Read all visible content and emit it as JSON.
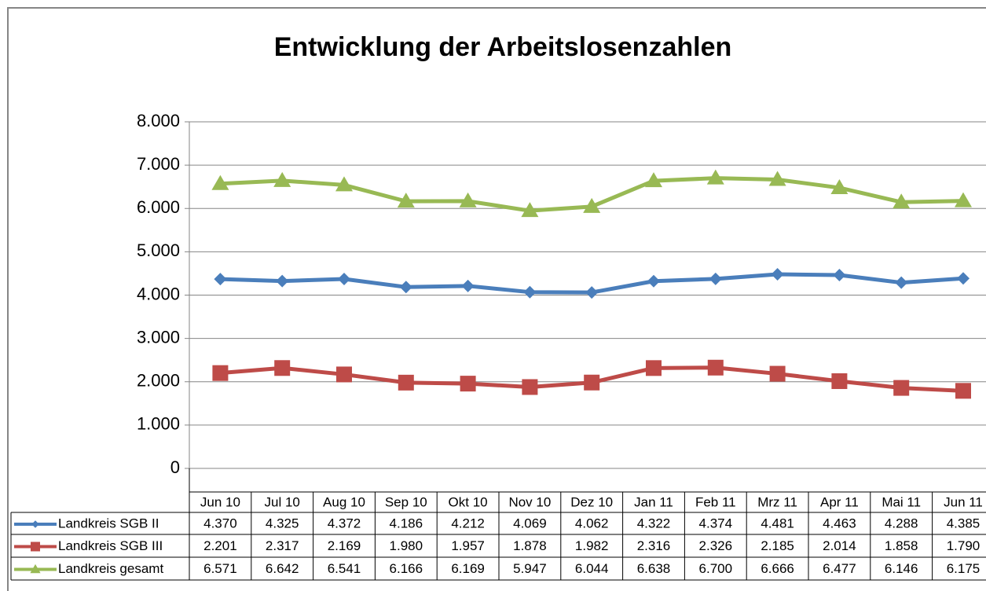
{
  "chart_data": {
    "type": "line",
    "title": "Entwicklung der Arbeitslosenzahlen",
    "categories": [
      "Jun 10",
      "Jul 10",
      "Aug 10",
      "Sep 10",
      "Okt 10",
      "Nov 10",
      "Dez 10",
      "Jan 11",
      "Feb 11",
      "Mrz 11",
      "Apr 11",
      "Mai 11",
      "Jun 11"
    ],
    "series": [
      {
        "name": "Landkreis SGB II",
        "color": "#4a7ebb",
        "marker": "diamond",
        "values": [
          4370,
          4325,
          4372,
          4186,
          4212,
          4069,
          4062,
          4322,
          4374,
          4481,
          4463,
          4288,
          4385
        ],
        "value_labels": [
          "4.370",
          "4.325",
          "4.372",
          "4.186",
          "4.212",
          "4.069",
          "4.062",
          "4.322",
          "4.374",
          "4.481",
          "4.463",
          "4.288",
          "4.385"
        ]
      },
      {
        "name": "Landkreis SGB III",
        "color": "#be4b48",
        "marker": "square",
        "values": [
          2201,
          2317,
          2169,
          1980,
          1957,
          1878,
          1982,
          2316,
          2326,
          2185,
          2014,
          1858,
          1790
        ],
        "value_labels": [
          "2.201",
          "2.317",
          "2.169",
          "1.980",
          "1.957",
          "1.878",
          "1.982",
          "2.316",
          "2.326",
          "2.185",
          "2.014",
          "1.858",
          "1.790"
        ]
      },
      {
        "name": "Landkreis gesamt",
        "color": "#98b954",
        "marker": "triangle",
        "values": [
          6571,
          6642,
          6541,
          6166,
          6169,
          5947,
          6044,
          6638,
          6700,
          6666,
          6477,
          6146,
          6175
        ],
        "value_labels": [
          "6.571",
          "6.642",
          "6.541",
          "6.166",
          "6.169",
          "5.947",
          "6.044",
          "6.638",
          "6.700",
          "6.666",
          "6.477",
          "6.146",
          "6.175"
        ]
      }
    ],
    "ylim": [
      0,
      8000
    ],
    "yticks": [
      0,
      {
        "value": 1000,
        "label": "1.000"
      },
      {
        "value": 2000,
        "label": "2.000"
      },
      {
        "value": 3000,
        "label": "3.000"
      },
      {
        "value": 4000,
        "label": "4.000"
      },
      {
        "value": 5000,
        "label": "5.000"
      },
      {
        "value": 6000,
        "label": "6.000"
      },
      {
        "value": 7000,
        "label": "7.000"
      },
      {
        "value": 8000,
        "label": "8.000"
      }
    ],
    "grid": true,
    "legend": "table"
  }
}
